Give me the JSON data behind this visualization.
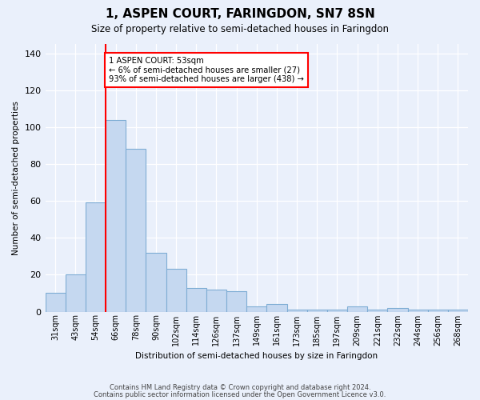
{
  "title": "1, ASPEN COURT, FARINGDON, SN7 8SN",
  "subtitle": "Size of property relative to semi-detached houses in Faringdon",
  "xlabel": "Distribution of semi-detached houses by size in Faringdon",
  "ylabel": "Number of semi-detached properties",
  "categories": [
    "31sqm",
    "43sqm",
    "54sqm",
    "66sqm",
    "78sqm",
    "90sqm",
    "102sqm",
    "114sqm",
    "126sqm",
    "137sqm",
    "149sqm",
    "161sqm",
    "173sqm",
    "185sqm",
    "197sqm",
    "209sqm",
    "221sqm",
    "232sqm",
    "244sqm",
    "256sqm",
    "268sqm"
  ],
  "values": [
    10,
    20,
    59,
    104,
    88,
    32,
    23,
    13,
    12,
    11,
    3,
    4,
    1,
    1,
    1,
    3,
    1,
    2,
    1,
    1,
    1
  ],
  "bar_color": "#c5d8f0",
  "bar_edge_color": "#7eadd4",
  "annotation_text_line1": "1 ASPEN COURT: 53sqm",
  "annotation_text_line2": "← 6% of semi-detached houses are smaller (27)",
  "annotation_text_line3": "93% of semi-detached houses are larger (438) →",
  "annotation_box_color": "white",
  "annotation_box_edge_color": "red",
  "vline_color": "red",
  "ylim": [
    0,
    145
  ],
  "yticks": [
    0,
    20,
    40,
    60,
    80,
    100,
    120,
    140
  ],
  "footer_line1": "Contains HM Land Registry data © Crown copyright and database right 2024.",
  "footer_line2": "Contains public sector information licensed under the Open Government Licence v3.0.",
  "bg_color": "#eaf0fb"
}
